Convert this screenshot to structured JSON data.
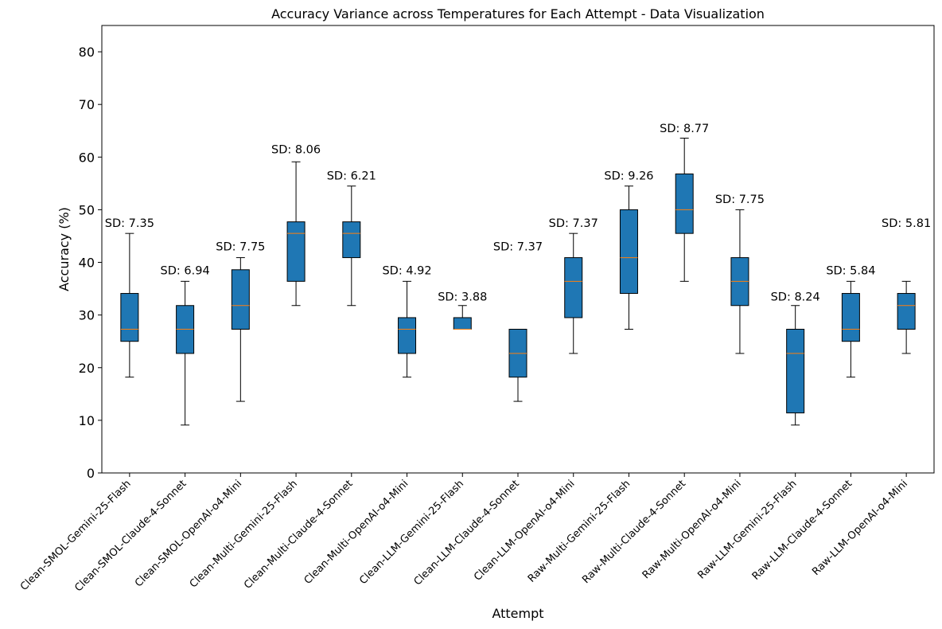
{
  "chart_data": {
    "type": "box",
    "title": "Accuracy Variance across Temperatures for Each Attempt - Data Visualization",
    "xlabel": "Attempt",
    "ylabel": "Accuracy (%)",
    "ylim": [
      0,
      85
    ],
    "yticks": [
      0,
      10,
      20,
      30,
      40,
      50,
      60,
      70,
      80
    ],
    "grid": false,
    "box_color": "#1f77b4",
    "median_color": "#ff7f0e",
    "categories": [
      "Clean-SMOL-Gemini-25-Flash",
      "Clean-SMOL-Claude-4-Sonnet",
      "Clean-SMOL-OpenAI-o4-Mini",
      "Clean-Multi-Gemini-25-Flash",
      "Clean-Multi-Claude-4-Sonnet",
      "Clean-Multi-OpenAI-o4-Mini",
      "Clean-LLM-Gemini-25-Flash",
      "Clean-LLM-Claude-4-Sonnet",
      "Clean-LLM-OpenAI-o4-Mini",
      "Raw-Multi-Gemini-25-Flash",
      "Raw-Multi-Claude-4-Sonnet",
      "Raw-Multi-OpenAI-o4-Mini",
      "Raw-LLM-Gemini-25-Flash",
      "Raw-LLM-Claude-4-Sonnet",
      "Raw-LLM-OpenAI-o4-Mini"
    ],
    "boxes": [
      {
        "min": 18.2,
        "q1": 25.0,
        "median": 27.3,
        "q3": 34.1,
        "max": 45.5,
        "sd_label": "SD: 7.35"
      },
      {
        "min": 9.1,
        "q1": 22.7,
        "median": 27.3,
        "q3": 31.8,
        "max": 36.4,
        "sd_label": "SD: 6.94"
      },
      {
        "min": 13.6,
        "q1": 27.3,
        "median": 31.8,
        "q3": 38.6,
        "max": 40.9,
        "sd_label": "SD: 7.75"
      },
      {
        "min": 31.8,
        "q1": 36.4,
        "median": 45.5,
        "q3": 47.7,
        "max": 59.1,
        "sd_label": "SD: 8.06"
      },
      {
        "min": 31.8,
        "q1": 40.9,
        "median": 45.5,
        "q3": 47.7,
        "max": 54.5,
        "sd_label": "SD: 6.21"
      },
      {
        "min": 18.2,
        "q1": 22.7,
        "median": 27.3,
        "q3": 29.5,
        "max": 36.4,
        "sd_label": "SD: 4.92"
      },
      {
        "min": 27.3,
        "q1": 27.3,
        "median": 27.3,
        "q3": 29.5,
        "max": 31.8,
        "sd_label": "SD: 3.88"
      },
      {
        "min": 13.6,
        "q1": 18.2,
        "median": 22.7,
        "q3": 27.3,
        "max": 27.3,
        "sd_label": "SD: 7.37"
      },
      {
        "min": 22.7,
        "q1": 29.5,
        "median": 36.4,
        "q3": 40.9,
        "max": 45.5,
        "sd_label": "SD: 7.37"
      },
      {
        "min": 27.3,
        "q1": 34.1,
        "median": 40.9,
        "q3": 50.0,
        "max": 54.5,
        "sd_label": "SD: 9.26"
      },
      {
        "min": 36.4,
        "q1": 45.5,
        "median": 50.0,
        "q3": 56.8,
        "max": 63.6,
        "sd_label": "SD: 8.77"
      },
      {
        "min": 22.7,
        "q1": 31.8,
        "median": 36.4,
        "q3": 40.9,
        "max": 50.0,
        "sd_label": "SD: 7.75"
      },
      {
        "min": 9.1,
        "q1": 11.4,
        "median": 22.7,
        "q3": 27.3,
        "max": 31.8,
        "sd_label": "SD: 8.24"
      },
      {
        "min": 18.2,
        "q1": 25.0,
        "median": 27.3,
        "q3": 34.1,
        "max": 36.4,
        "sd_label": "SD: 5.84"
      },
      {
        "min": 22.7,
        "q1": 27.3,
        "median": 31.8,
        "q3": 34.1,
        "max": 36.4,
        "sd_label": "SD: 5.81"
      }
    ],
    "sd_label_values": [
      47.5,
      38.5,
      43.0,
      61.5,
      56.5,
      38.5,
      33.5,
      43.0,
      47.5,
      56.5,
      65.5,
      52.0,
      33.5,
      38.5,
      47.5
    ]
  }
}
